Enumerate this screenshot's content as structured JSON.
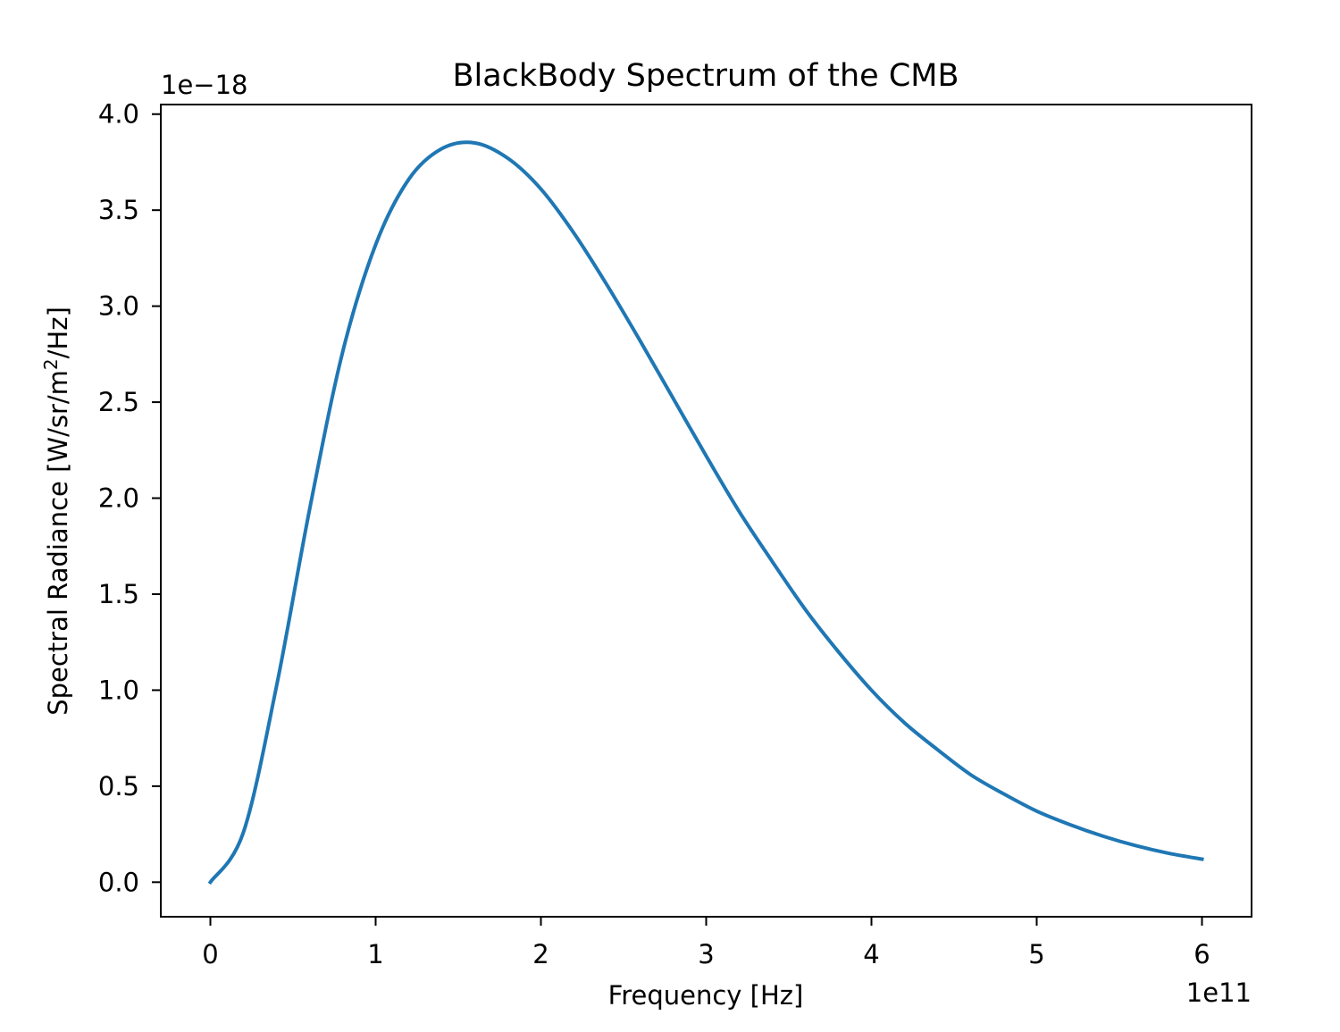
{
  "chart_data": {
    "type": "line",
    "title": "BlackBody Spectrum of the CMB",
    "xlabel": "Frequency [Hz]",
    "ylabel_parts": {
      "before": "Spectral Radiance [W/sr/m",
      "sup": "2",
      "after": "/Hz]"
    },
    "x_offset_label": "1e11",
    "y_offset_label": "1e−18",
    "x_unit_scale": 100000000000.0,
    "y_unit_scale": 1e-18,
    "xlim": [
      -30000000000.0,
      630000000000.0
    ],
    "ylim": [
      -1.8e-19,
      4.05e-18
    ],
    "x_ticks": [
      0,
      100000000000.0,
      200000000000.0,
      300000000000.0,
      400000000000.0,
      500000000000.0,
      600000000000.0
    ],
    "x_tick_labels": [
      "0",
      "1",
      "2",
      "3",
      "4",
      "5",
      "6"
    ],
    "y_ticks": [
      0,
      5e-19,
      1e-18,
      1.5e-18,
      2e-18,
      2.5e-18,
      3e-18,
      3.5e-18,
      4e-18
    ],
    "y_tick_labels": [
      "0.0",
      "0.5",
      "1.0",
      "1.5",
      "2.0",
      "2.5",
      "3.0",
      "3.5",
      "4.0"
    ],
    "grid": false,
    "legend": "none",
    "series": [
      {
        "color": "#1f77b4",
        "x": [
          0,
          20000000000.0,
          40000000000.0,
          60000000000.0,
          80000000000.0,
          100000000000.0,
          120000000000.0,
          140000000000.0,
          160000000000.0,
          180000000000.0,
          200000000000.0,
          220000000000.0,
          240000000000.0,
          260000000000.0,
          280000000000.0,
          300000000000.0,
          320000000000.0,
          340000000000.0,
          360000000000.0,
          380000000000.0,
          400000000000.0,
          420000000000.0,
          440000000000.0,
          460000000000.0,
          480000000000.0,
          500000000000.0,
          520000000000.0,
          540000000000.0,
          560000000000.0,
          580000000000.0,
          600000000000.0
        ],
        "y": [
          0,
          2.6e-19,
          1.02e-18,
          1.94e-18,
          2.76e-18,
          3.32e-18,
          3.66e-18,
          3.82e-18,
          3.85e-18,
          3.77e-18,
          3.61e-18,
          3.38e-18,
          3.11e-18,
          2.82e-18,
          2.52e-18,
          2.22e-18,
          1.93e-18,
          1.67e-18,
          1.42e-18,
          1.2e-18,
          1e-18,
          8.3e-19,
          6.9e-19,
          5.6e-19,
          4.6e-19,
          3.7e-19,
          3e-19,
          2.4e-19,
          1.9e-19,
          1.5e-19,
          1.2e-19
        ]
      }
    ]
  }
}
